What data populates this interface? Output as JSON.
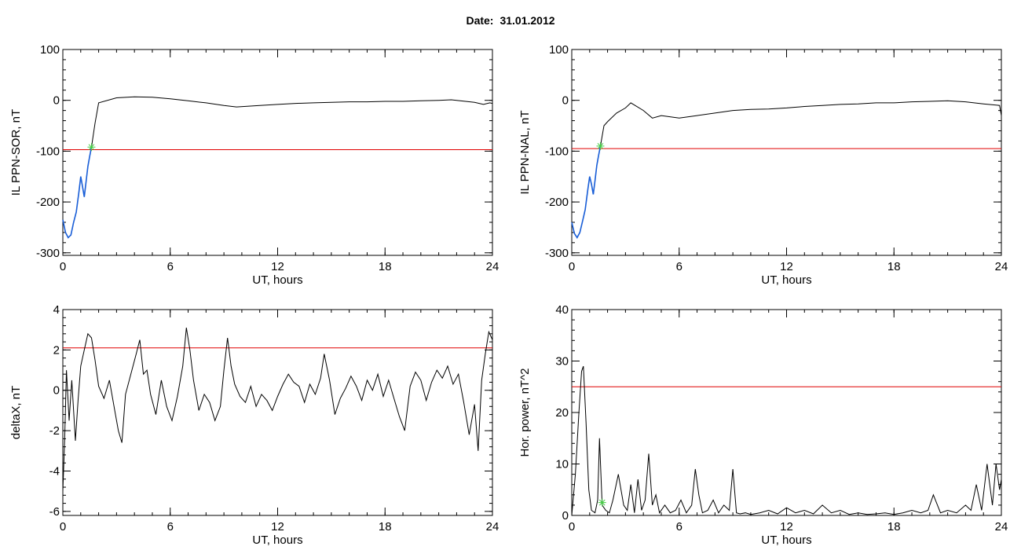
{
  "header": {
    "date_label": "Date:",
    "date_value": "31.01.2012"
  },
  "colors": {
    "series": "#000000",
    "threshold": "#e00000",
    "highlight": "#1a5fd8",
    "marker": "#44cc44"
  },
  "chart_data": [
    {
      "id": "sor",
      "type": "line",
      "ylabel": "IL PPN-SOR, nT",
      "xlabel": "UT, hours",
      "xlim": [
        0,
        24
      ],
      "ylim": [
        -305,
        100
      ],
      "xticks": [
        0,
        6,
        12,
        18,
        24
      ],
      "xtick_labels": [
        "0",
        "6",
        "12",
        "18",
        "24"
      ],
      "yticks": [
        -300,
        -200,
        -100,
        0,
        100
      ],
      "ytick_labels": [
        "-300",
        "-200",
        "-100",
        "0",
        "100"
      ],
      "threshold": -97,
      "marker": {
        "x": 1.6,
        "y": -92
      },
      "highlight_range": [
        0,
        1.6
      ],
      "series": [
        {
          "x": [
            0,
            0.15,
            0.3,
            0.45,
            0.6,
            0.75,
            0.9,
            1.0,
            1.1,
            1.2,
            1.3,
            1.4,
            1.5,
            1.6,
            1.8,
            2.0,
            3.0,
            4.0,
            5.0,
            6.0,
            7.0,
            8.0,
            9.0,
            9.7,
            11.0,
            12.0,
            13.0,
            14.0,
            15.0,
            16.0,
            17.0,
            18.0,
            19.0,
            20.0,
            21.0,
            21.7,
            22.5,
            23.0,
            23.5,
            23.85,
            24.0
          ],
          "y": [
            -235,
            -260,
            -270,
            -265,
            -240,
            -220,
            -180,
            -150,
            -170,
            -190,
            -160,
            -130,
            -110,
            -92,
            -45,
            -5,
            5,
            7,
            6,
            3,
            -1,
            -5,
            -10,
            -13,
            -10,
            -8,
            -6,
            -5,
            -4,
            -3,
            -3,
            -2,
            -2,
            -1,
            0,
            1,
            -2,
            -4,
            -8,
            -5,
            -6
          ]
        }
      ]
    },
    {
      "id": "nal",
      "type": "line",
      "ylabel": "IL PPN-NAL, nT",
      "xlabel": "UT, hours",
      "xlim": [
        0,
        24
      ],
      "ylim": [
        -305,
        100
      ],
      "xticks": [
        0,
        6,
        12,
        18,
        24
      ],
      "xtick_labels": [
        "0",
        "6",
        "12",
        "18",
        "24"
      ],
      "yticks": [
        -300,
        -200,
        -100,
        0,
        100
      ],
      "ytick_labels": [
        "-300",
        "-200",
        "-100",
        "0",
        "100"
      ],
      "threshold": -95,
      "marker": {
        "x": 1.6,
        "y": -90
      },
      "highlight_range": [
        0,
        1.6
      ],
      "series": [
        {
          "x": [
            0,
            0.15,
            0.3,
            0.45,
            0.6,
            0.75,
            0.9,
            1.0,
            1.1,
            1.2,
            1.3,
            1.4,
            1.5,
            1.6,
            1.8,
            2.0,
            2.5,
            3.0,
            3.3,
            4.0,
            4.5,
            5.0,
            6.0,
            7.0,
            8.0,
            9.0,
            10.0,
            11.0,
            12.0,
            13.0,
            14.0,
            15.0,
            16.0,
            17.0,
            18.0,
            19.0,
            20.0,
            21.0,
            22.0,
            23.0,
            23.9,
            24.0
          ],
          "y": [
            -240,
            -262,
            -270,
            -260,
            -238,
            -215,
            -175,
            -150,
            -165,
            -185,
            -158,
            -128,
            -108,
            -90,
            -50,
            -42,
            -25,
            -15,
            -5,
            -20,
            -35,
            -30,
            -35,
            -30,
            -25,
            -20,
            -18,
            -17,
            -15,
            -12,
            -10,
            -8,
            -7,
            -5,
            -5,
            -3,
            -2,
            -1,
            -3,
            -7,
            -10,
            -30
          ]
        }
      ]
    },
    {
      "id": "deltax",
      "type": "line",
      "ylabel": "deltaX, nT",
      "xlabel": "UT, hours",
      "xlim": [
        0,
        24
      ],
      "ylim": [
        -6.2,
        4
      ],
      "xticks": [
        0,
        6,
        12,
        18,
        24
      ],
      "xtick_labels": [
        "0",
        "6",
        "12",
        "18",
        "24"
      ],
      "yticks": [
        -6,
        -4,
        -2,
        0,
        2,
        4
      ],
      "ytick_labels": [
        "-6",
        "-4",
        "-2",
        "0",
        "2",
        "4"
      ],
      "threshold": 2.1,
      "series": [
        {
          "x": [
            0,
            0.1,
            0.2,
            0.35,
            0.5,
            0.7,
            0.85,
            1.0,
            1.2,
            1.4,
            1.6,
            1.8,
            2.0,
            2.3,
            2.6,
            2.9,
            3.1,
            3.3,
            3.5,
            3.8,
            4.1,
            4.3,
            4.5,
            4.7,
            4.9,
            5.2,
            5.5,
            5.8,
            6.1,
            6.4,
            6.7,
            6.9,
            7.1,
            7.3,
            7.6,
            7.9,
            8.2,
            8.5,
            8.8,
            9.0,
            9.2,
            9.4,
            9.6,
            9.9,
            10.2,
            10.5,
            10.8,
            11.1,
            11.4,
            11.7,
            12.0,
            12.3,
            12.6,
            12.9,
            13.2,
            13.5,
            13.8,
            14.1,
            14.4,
            14.6,
            14.9,
            15.2,
            15.5,
            15.8,
            16.1,
            16.4,
            16.7,
            17.0,
            17.3,
            17.6,
            17.9,
            18.2,
            18.5,
            18.8,
            19.1,
            19.4,
            19.7,
            20.0,
            20.3,
            20.6,
            20.9,
            21.2,
            21.5,
            21.8,
            22.1,
            22.4,
            22.7,
            23.0,
            23.2,
            23.4,
            23.6,
            23.8,
            24.0
          ],
          "y": [
            -5.0,
            -2.5,
            1.0,
            -1.5,
            0.5,
            -2.5,
            -0.5,
            1.2,
            2.0,
            2.8,
            2.6,
            1.5,
            0.2,
            -0.4,
            0.5,
            -1.0,
            -2.0,
            -2.6,
            -0.2,
            0.8,
            1.8,
            2.5,
            0.8,
            1.0,
            -0.2,
            -1.2,
            0.5,
            -0.8,
            -1.5,
            -0.3,
            1.2,
            3.1,
            2.0,
            0.5,
            -1.0,
            -0.2,
            -0.6,
            -1.5,
            -0.8,
            1.0,
            2.6,
            1.2,
            0.3,
            -0.3,
            -0.6,
            0.2,
            -0.8,
            -0.2,
            -0.5,
            -1.0,
            -0.3,
            0.3,
            0.8,
            0.4,
            0.2,
            -0.6,
            0.3,
            -0.2,
            0.6,
            1.8,
            0.5,
            -1.2,
            -0.4,
            0.1,
            0.7,
            0.2,
            -0.5,
            0.5,
            0.0,
            0.8,
            -0.3,
            0.5,
            -0.4,
            -1.3,
            -2.0,
            0.2,
            0.9,
            0.5,
            -0.5,
            0.4,
            1.0,
            0.6,
            1.2,
            0.3,
            0.8,
            -0.6,
            -2.2,
            -0.7,
            -3.0,
            0.5,
            1.8,
            2.9,
            2.5
          ]
        }
      ]
    },
    {
      "id": "power",
      "type": "line",
      "ylabel": "Hor. power, nT^2",
      "xlabel": "UT, hours",
      "xlim": [
        0,
        24
      ],
      "ylim": [
        0,
        40
      ],
      "xticks": [
        0,
        6,
        12,
        18,
        24
      ],
      "xtick_labels": [
        "0",
        "6",
        "12",
        "18",
        "24"
      ],
      "yticks": [
        0,
        10,
        20,
        30,
        40
      ],
      "ytick_labels": [
        "0",
        "10",
        "20",
        "30",
        "40"
      ],
      "threshold": 25,
      "marker": {
        "x": 1.7,
        "y": 2.5
      },
      "series": [
        {
          "x": [
            0,
            0.2,
            0.4,
            0.55,
            0.65,
            0.8,
            0.95,
            1.1,
            1.3,
            1.45,
            1.55,
            1.7,
            1.9,
            2.1,
            2.3,
            2.6,
            2.9,
            3.1,
            3.3,
            3.5,
            3.7,
            3.9,
            4.1,
            4.3,
            4.5,
            4.7,
            4.9,
            5.2,
            5.5,
            5.8,
            6.1,
            6.4,
            6.7,
            6.9,
            7.1,
            7.3,
            7.6,
            7.9,
            8.2,
            8.5,
            8.8,
            9.0,
            9.2,
            9.4,
            9.7,
            10.0,
            10.5,
            11.0,
            11.5,
            12.0,
            12.5,
            13.0,
            13.5,
            14.0,
            14.5,
            15.0,
            15.5,
            16.0,
            16.5,
            17.0,
            17.5,
            18.0,
            18.5,
            19.0,
            19.5,
            19.9,
            20.2,
            20.6,
            21.0,
            21.5,
            22.0,
            22.3,
            22.6,
            22.9,
            23.2,
            23.5,
            23.7,
            23.9,
            24.0
          ],
          "y": [
            0,
            8,
            20,
            28,
            29,
            18,
            5,
            1,
            0.5,
            3,
            15,
            2,
            1,
            0.5,
            3,
            8,
            2,
            1,
            6,
            0.5,
            7,
            1,
            3,
            12,
            2,
            4,
            0.5,
            2,
            0.5,
            1,
            3,
            0.5,
            2,
            9,
            4,
            0.5,
            1,
            3,
            0.5,
            2,
            1,
            9,
            0.5,
            0.3,
            0.5,
            0.2,
            0.5,
            1,
            0.3,
            1.5,
            0.5,
            1,
            0.3,
            2,
            0.5,
            1,
            0.2,
            0.5,
            0.2,
            0.3,
            0.5,
            0.2,
            0.5,
            1,
            0.5,
            1,
            4,
            0.5,
            1,
            0.5,
            2,
            1,
            6,
            1,
            10,
            2,
            10,
            5,
            7
          ]
        }
      ]
    }
  ]
}
